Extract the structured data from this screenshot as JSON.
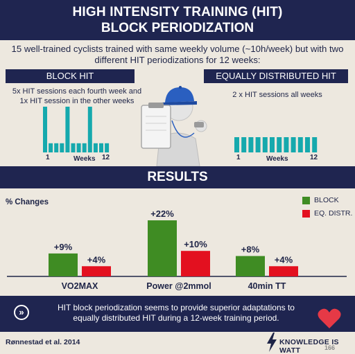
{
  "header": {
    "title_line1": "HIGH INTENSITY TRAINING (HIT)",
    "title_line2": "BLOCK PERIODIZATION"
  },
  "intro": "15 well-trained cyclists trained with same weekly volume (~10h/week) but with two different HIT periodizations for 12 weeks:",
  "block_hit": {
    "label": "BLOCK HIT",
    "desc_line1": "5x HIT sessions each fourth week and",
    "desc_line2": "1x HIT session in the other weeks",
    "tick_start": "1",
    "tick_mid": "Weeks",
    "tick_end": "12",
    "week_sessions": [
      5,
      1,
      1,
      1,
      5,
      1,
      1,
      1,
      5,
      1,
      1,
      1
    ]
  },
  "equal_hit": {
    "label": "EQUALLY DISTRIBUTED HIT",
    "desc": "2 x HIT sessions all weeks",
    "tick_start": "1",
    "tick_mid": "Weeks",
    "tick_end": "12",
    "week_sessions": [
      2,
      2,
      2,
      2,
      2,
      2,
      2,
      2,
      2,
      2,
      2,
      2
    ]
  },
  "results": {
    "title": "RESULTS",
    "ylabel": "% Changes",
    "legend": [
      {
        "label": "BLOCK",
        "color": "#3f8c23"
      },
      {
        "label": "EQ. DISTR.",
        "color": "#e3101f"
      }
    ]
  },
  "chart_data": {
    "type": "bar",
    "ylabel": "% Changes",
    "categories": [
      "VO2MAX",
      "Power @2mmol",
      "40min TT"
    ],
    "series": [
      {
        "name": "BLOCK",
        "values": [
          9,
          22,
          8
        ],
        "labels": [
          "+9%",
          "+22%",
          "+8%"
        ],
        "color": "#3f8c23"
      },
      {
        "name": "EQ. DISTR.",
        "values": [
          4,
          10,
          4
        ],
        "labels": [
          "+4%",
          "+10%",
          "+4%"
        ],
        "color": "#e3101f"
      }
    ],
    "ylim": [
      0,
      25
    ],
    "grid": false,
    "legend_position": "top-right"
  },
  "summary_line1": "HIT block periodization seems to provide superior adaptations to",
  "summary_line2": "equally distributed HIT during a 12-week training period.",
  "citation": "Rønnestad et al. 2014",
  "brand": "KNOWLEDGE IS WATT",
  "brand_number": "166",
  "colors": {
    "navy": "#1f2550",
    "teal": "#15a9ad",
    "green": "#3f8c23",
    "red": "#e3101f",
    "heart": "#e63946",
    "cap": "#2a5fc0",
    "background": "#ede8df"
  },
  "icons": [
    "coach-figure-icon",
    "clipboard-icon",
    "whistle-icon",
    "heart-icon",
    "lightning-bolt-icon",
    "double-chevron-icon"
  ]
}
